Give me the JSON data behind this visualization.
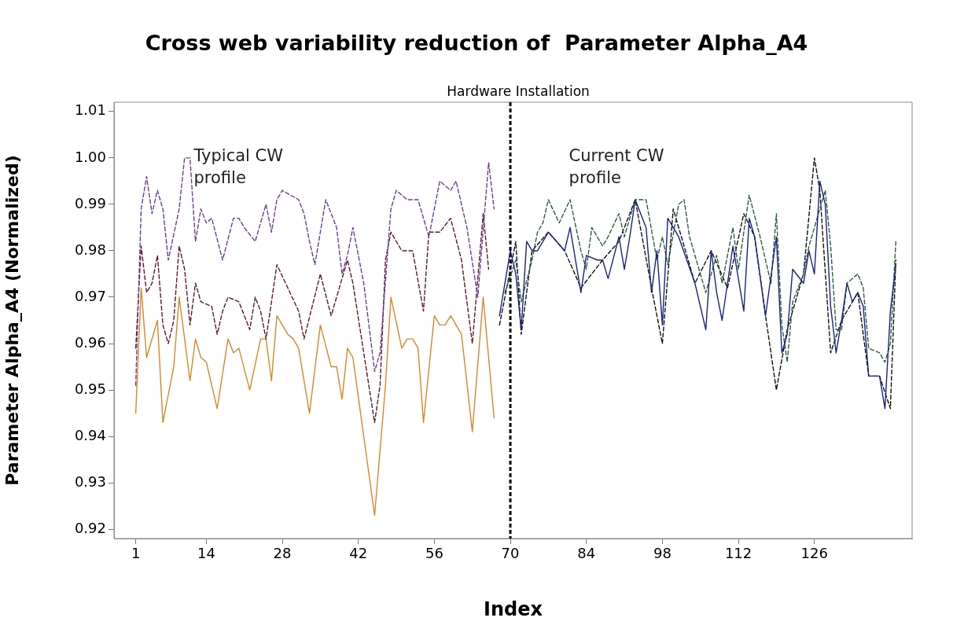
{
  "chart_data": {
    "type": "line",
    "title": "Cross web variability reduction of  Parameter Alpha_A4",
    "xlabel": "Index",
    "ylabel": "Parameter Alpha_A4 (Normalized)",
    "xlim": [
      -3,
      144
    ],
    "xticks": [
      1,
      14,
      28,
      42,
      56,
      70,
      84,
      98,
      112,
      126
    ],
    "ylim": [
      0.918,
      1.012
    ],
    "yticks": [
      0.92,
      0.93,
      0.94,
      0.95,
      0.96,
      0.97,
      0.98,
      0.99,
      {
        "value": 1,
        "label": "1.00"
      },
      1.01
    ],
    "grid": false,
    "legend": false,
    "marker": "none",
    "ref_lines": [
      {
        "axis": "x",
        "value": 70,
        "label": "Hardware Installation",
        "color": "#000000",
        "line_style": "dashed"
      }
    ],
    "annotations": [
      "Typical CW\nprofile",
      "Current CW\nprofile"
    ],
    "series": [
      {
        "color": "#6b3f8f",
        "line_style": "dashed",
        "x": [
          1,
          2,
          3,
          4,
          5,
          6,
          7,
          9,
          10,
          11,
          12,
          13,
          14,
          15,
          17,
          19,
          20,
          21,
          23,
          25,
          26,
          27,
          28,
          31,
          32,
          33,
          34,
          36,
          37,
          38,
          39,
          40,
          41,
          43,
          45,
          46,
          48,
          49,
          51,
          53,
          55,
          57,
          59,
          60,
          62,
          64,
          66,
          67
        ],
        "values": [
          0.951,
          0.989,
          0.996,
          0.988,
          0.993,
          0.989,
          0.978,
          0.989,
          1.0,
          1.0,
          0.982,
          0.989,
          0.986,
          0.987,
          0.978,
          0.987,
          0.987,
          0.985,
          0.982,
          0.99,
          0.984,
          0.991,
          0.993,
          0.991,
          0.988,
          0.982,
          0.977,
          0.991,
          0.988,
          0.985,
          0.975,
          0.979,
          0.985,
          0.973,
          0.954,
          0.958,
          0.989,
          0.993,
          0.991,
          0.991,
          0.983,
          0.995,
          0.993,
          0.995,
          0.985,
          0.97,
          0.999,
          0.989
        ]
      },
      {
        "color": "#5a1a2a",
        "line_style": "dashed",
        "x": [
          1,
          2,
          3,
          4,
          5,
          6,
          7,
          8,
          9,
          10,
          11,
          12,
          13,
          15,
          16,
          17,
          18,
          20,
          22,
          23,
          24,
          25,
          27,
          29,
          31,
          32,
          35,
          37,
          38,
          40,
          41,
          43,
          45,
          46,
          47,
          48,
          50,
          52,
          54,
          55,
          57,
          59,
          61,
          63,
          65,
          66
        ],
        "values": [
          0.959,
          0.981,
          0.971,
          0.973,
          0.979,
          0.964,
          0.96,
          0.965,
          0.981,
          0.976,
          0.964,
          0.973,
          0.969,
          0.968,
          0.962,
          0.967,
          0.97,
          0.969,
          0.963,
          0.97,
          0.967,
          0.961,
          0.977,
          0.972,
          0.967,
          0.961,
          0.975,
          0.966,
          0.97,
          0.978,
          0.973,
          0.958,
          0.943,
          0.951,
          0.978,
          0.984,
          0.98,
          0.98,
          0.967,
          0.984,
          0.984,
          0.987,
          0.978,
          0.96,
          0.988,
          0.976
        ]
      },
      {
        "color": "#d4882a",
        "line_style": "solid",
        "x": [
          1,
          2,
          3,
          5,
          6,
          8,
          9,
          11,
          12,
          13,
          14,
          16,
          18,
          19,
          20,
          22,
          24,
          25,
          26,
          27,
          29,
          30,
          31,
          33,
          35,
          37,
          38,
          39,
          40,
          41,
          45,
          47,
          48,
          50,
          51,
          52,
          53,
          54,
          56,
          57,
          58,
          59,
          61,
          63,
          65,
          67
        ],
        "values": [
          0.945,
          0.972,
          0.957,
          0.965,
          0.943,
          0.955,
          0.97,
          0.952,
          0.961,
          0.957,
          0.956,
          0.946,
          0.961,
          0.958,
          0.959,
          0.95,
          0.961,
          0.961,
          0.952,
          0.966,
          0.962,
          0.961,
          0.959,
          0.945,
          0.964,
          0.955,
          0.955,
          0.948,
          0.959,
          0.957,
          0.923,
          0.951,
          0.97,
          0.959,
          0.961,
          0.961,
          0.959,
          0.943,
          0.966,
          0.964,
          0.964,
          0.966,
          0.962,
          0.941,
          0.97,
          0.944
        ]
      },
      {
        "color": "#1a237e",
        "line_style": "solid",
        "x": [
          68,
          70,
          71,
          72,
          73,
          74,
          75,
          77,
          80,
          81,
          83,
          84,
          86,
          87,
          88,
          90,
          91,
          92,
          93,
          95,
          96,
          97,
          98,
          99,
          101,
          104,
          106,
          107,
          108,
          109,
          110,
          111,
          113,
          114,
          115,
          117,
          119,
          120,
          121,
          122,
          124,
          125,
          126,
          127,
          128,
          129,
          130,
          131,
          132,
          133,
          134,
          135,
          136,
          138,
          139,
          140,
          141
        ],
        "values": [
          0.966,
          0.98,
          0.975,
          0.963,
          0.982,
          0.98,
          0.98,
          0.984,
          0.98,
          0.985,
          0.971,
          0.979,
          0.978,
          0.978,
          0.974,
          0.983,
          0.976,
          0.983,
          0.991,
          0.985,
          0.971,
          0.98,
          0.964,
          0.987,
          0.983,
          0.973,
          0.963,
          0.98,
          0.971,
          0.965,
          0.973,
          0.981,
          0.967,
          0.987,
          0.983,
          0.966,
          0.983,
          0.958,
          0.962,
          0.976,
          0.973,
          0.98,
          0.975,
          0.995,
          0.99,
          0.968,
          0.958,
          0.965,
          0.973,
          0.969,
          0.971,
          0.968,
          0.953,
          0.953,
          0.946,
          0.967,
          0.977
        ]
      },
      {
        "color": "#2e5e3e",
        "line_style": "dashed",
        "x": [
          69,
          71,
          72,
          74,
          75,
          76,
          77,
          79,
          81,
          83,
          84,
          85,
          87,
          88,
          90,
          91,
          93,
          95,
          97,
          98,
          99,
          101,
          102,
          103,
          106,
          108,
          109,
          111,
          112,
          114,
          116,
          118,
          119,
          120,
          121,
          122,
          124,
          125,
          128,
          129,
          130,
          131,
          132,
          134,
          135,
          136,
          138,
          139,
          140,
          141
        ],
        "values": [
          0.971,
          0.978,
          0.969,
          0.978,
          0.984,
          0.986,
          0.991,
          0.986,
          0.991,
          0.98,
          0.976,
          0.985,
          0.981,
          0.983,
          0.988,
          0.983,
          0.991,
          0.991,
          0.978,
          0.983,
          0.977,
          0.99,
          0.991,
          0.983,
          0.971,
          0.979,
          0.973,
          0.985,
          0.976,
          0.992,
          0.983,
          0.973,
          0.988,
          0.964,
          0.956,
          0.969,
          0.975,
          0.981,
          0.993,
          0.981,
          0.963,
          0.963,
          0.973,
          0.975,
          0.972,
          0.959,
          0.958,
          0.956,
          0.96,
          0.982
        ]
      },
      {
        "color": "#111111",
        "line_style": "dashed",
        "x": [
          68,
          71,
          72,
          74,
          77,
          80,
          83,
          87,
          90,
          93,
          96,
          98,
          100,
          104,
          107,
          110,
          113,
          115,
          117,
          119,
          121,
          124,
          126,
          127,
          129,
          131,
          134,
          136,
          138,
          140,
          141
        ],
        "values": [
          0.964,
          0.982,
          0.962,
          0.98,
          0.984,
          0.98,
          0.972,
          0.978,
          0.982,
          0.991,
          0.972,
          0.96,
          0.989,
          0.973,
          0.98,
          0.972,
          0.988,
          0.983,
          0.966,
          0.95,
          0.963,
          0.975,
          1.0,
          0.993,
          0.958,
          0.965,
          0.971,
          0.953,
          0.953,
          0.946,
          0.978
        ]
      }
    ]
  }
}
